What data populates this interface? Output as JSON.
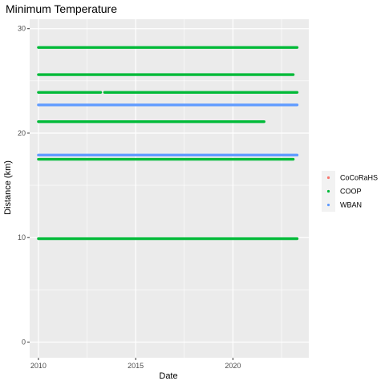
{
  "chart_data": {
    "type": "scatter",
    "title": "Minimum Temperature",
    "xlabel": "Date",
    "ylabel": "Distance (km)",
    "xlim": [
      2009.55,
      2023.9
    ],
    "ylim": [
      -1.5,
      30.9
    ],
    "x_ticks": [
      2010,
      2015,
      2020
    ],
    "x_tick_labels": [
      "2010",
      "2015",
      "2020"
    ],
    "y_ticks": [
      0,
      10,
      20,
      30
    ],
    "y_tick_labels": [
      "0",
      "10",
      "20",
      "30"
    ],
    "grid": true,
    "legend_position": "right",
    "colors": {
      "CoCoRaHS": "#f8766d",
      "COOP": "#00ba38",
      "WBAN": "#619cff",
      "panel": "#ebebeb",
      "grid": "#ffffff"
    },
    "series": [
      {
        "name": "CoCoRaHS",
        "segments": []
      },
      {
        "name": "COOP",
        "segments": [
          {
            "y": 28.2,
            "x_start": 2010.0,
            "x_end": 2023.3
          },
          {
            "y": 25.6,
            "x_start": 2010.0,
            "x_end": 2023.1
          },
          {
            "y": 23.9,
            "x_start": 2010.0,
            "x_end": 2013.2
          },
          {
            "y": 23.9,
            "x_start": 2013.4,
            "x_end": 2023.3
          },
          {
            "y": 21.1,
            "x_start": 2010.0,
            "x_end": 2021.6
          },
          {
            "y": 17.5,
            "x_start": 2010.0,
            "x_end": 2023.1
          },
          {
            "y": 9.9,
            "x_start": 2010.0,
            "x_end": 2023.3
          }
        ]
      },
      {
        "name": "WBAN",
        "segments": [
          {
            "y": 22.7,
            "x_start": 2010.0,
            "x_end": 2023.3
          },
          {
            "y": 17.9,
            "x_start": 2010.0,
            "x_end": 2023.3
          }
        ]
      }
    ]
  }
}
